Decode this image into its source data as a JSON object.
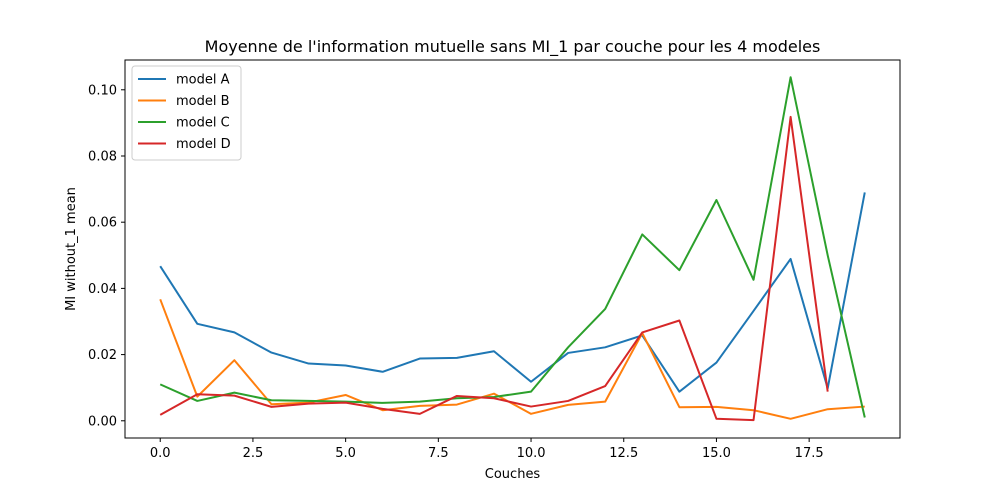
{
  "chart_data": {
    "type": "line",
    "title": "Moyenne de l'information mutuelle sans MI_1 par couche pour les 4 modeles",
    "xlabel": "Couches",
    "ylabel": "MI without_1 mean",
    "xlim": [
      -0.95,
      19.95
    ],
    "ylim": [
      -0.0052,
      0.109
    ],
    "xticks": [
      0.0,
      2.5,
      5.0,
      7.5,
      10.0,
      12.5,
      15.0,
      17.5
    ],
    "xtick_labels": [
      "0.0",
      "2.5",
      "5.0",
      "7.5",
      "10.0",
      "12.5",
      "15.0",
      "17.5"
    ],
    "yticks": [
      0.0,
      0.02,
      0.04,
      0.06,
      0.08,
      0.1
    ],
    "ytick_labels": [
      "0.00",
      "0.02",
      "0.04",
      "0.06",
      "0.08",
      "0.10"
    ],
    "grid": false,
    "legend_position": "top-left",
    "x": [
      0,
      1,
      2,
      3,
      4,
      5,
      6,
      7,
      8,
      9,
      10,
      11,
      12,
      13,
      14,
      15,
      16,
      17,
      18,
      19
    ],
    "series": [
      {
        "name": "model A",
        "color": "#1f77b4",
        "values": [
          0.0467,
          0.0293,
          0.0267,
          0.0206,
          0.0173,
          0.0167,
          0.0148,
          0.0188,
          0.019,
          0.021,
          0.0118,
          0.0205,
          0.0222,
          0.0258,
          0.0088,
          0.0176,
          0.0332,
          0.0489,
          0.0098,
          0.069
        ]
      },
      {
        "name": "model B",
        "color": "#ff7f0e",
        "values": [
          0.0367,
          0.0073,
          0.0183,
          0.005,
          0.0055,
          0.0078,
          0.0032,
          0.0045,
          0.0049,
          0.0082,
          0.0021,
          0.0048,
          0.0058,
          0.0265,
          0.0041,
          0.0042,
          0.0032,
          0.0006,
          0.0035,
          0.0043
        ]
      },
      {
        "name": "model C",
        "color": "#2ca02c",
        "values": [
          0.011,
          0.006,
          0.0085,
          0.0062,
          0.006,
          0.0058,
          0.0054,
          0.0058,
          0.0068,
          0.0072,
          0.0088,
          0.0222,
          0.0338,
          0.0563,
          0.0455,
          0.0667,
          0.0426,
          0.1038,
          0.05,
          0.001
        ]
      },
      {
        "name": "model D",
        "color": "#d62728",
        "values": [
          0.0018,
          0.008,
          0.0076,
          0.0042,
          0.0052,
          0.0055,
          0.0036,
          0.0021,
          0.0075,
          0.0068,
          0.0043,
          0.006,
          0.0105,
          0.0267,
          0.0303,
          0.0006,
          0.0002,
          0.0918,
          0.0088,
          null
        ]
      }
    ]
  }
}
